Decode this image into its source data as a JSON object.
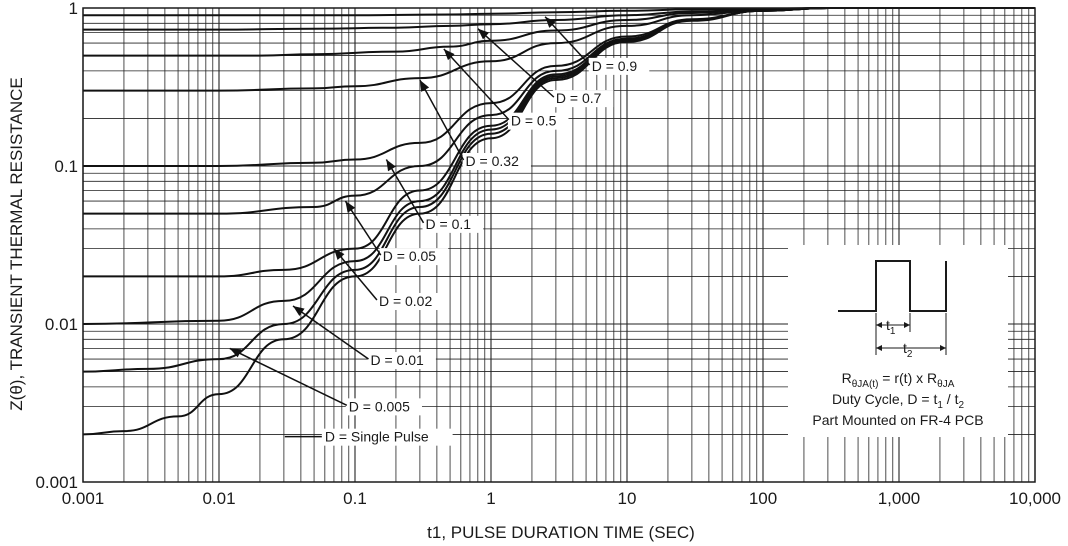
{
  "chart_data": {
    "type": "line",
    "xlabel": "t1, PULSE DURATION TIME (SEC)",
    "ylabel": "Z(θ), TRANSIENT  THERMAL RESISTANCE",
    "x_scale": "log",
    "y_scale": "log",
    "xlim": [
      0.001,
      10000
    ],
    "ylim": [
      0.001,
      1
    ],
    "grid": true,
    "x_tick_labels": [
      "0.001",
      "0.01",
      "0.1",
      "1",
      "10",
      "100",
      "1,000",
      "10,000"
    ],
    "y_tick_labels": [
      "0.001",
      "0.01",
      "0.1",
      "1"
    ],
    "series": [
      {
        "name": "D = 0.9",
        "D": 0.9,
        "points": [
          [
            0.001,
            0.9
          ],
          [
            0.01,
            0.9
          ],
          [
            0.1,
            0.9
          ],
          [
            0.5,
            0.91
          ],
          [
            1,
            0.92
          ],
          [
            3,
            0.94
          ],
          [
            10,
            0.96
          ],
          [
            30,
            0.98
          ],
          [
            100,
            0.99
          ],
          [
            300,
            1.0
          ],
          [
            10000,
            1.0
          ]
        ]
      },
      {
        "name": "D = 0.7",
        "D": 0.7,
        "points": [
          [
            0.001,
            0.73
          ],
          [
            0.01,
            0.73
          ],
          [
            0.05,
            0.74
          ],
          [
            0.2,
            0.75
          ],
          [
            0.5,
            0.77
          ],
          [
            1,
            0.79
          ],
          [
            3,
            0.84
          ],
          [
            10,
            0.9
          ],
          [
            30,
            0.95
          ],
          [
            100,
            0.98
          ],
          [
            300,
            1.0
          ],
          [
            10000,
            1.0
          ]
        ]
      },
      {
        "name": "D = 0.5",
        "D": 0.5,
        "points": [
          [
            0.001,
            0.5
          ],
          [
            0.02,
            0.5
          ],
          [
            0.05,
            0.51
          ],
          [
            0.2,
            0.53
          ],
          [
            0.5,
            0.57
          ],
          [
            1,
            0.62
          ],
          [
            3,
            0.72
          ],
          [
            10,
            0.84
          ],
          [
            30,
            0.93
          ],
          [
            100,
            0.98
          ],
          [
            300,
            1.0
          ],
          [
            10000,
            1.0
          ]
        ]
      },
      {
        "name": "D = 0.32",
        "D": 0.32,
        "points": [
          [
            0.001,
            0.3
          ],
          [
            0.01,
            0.3
          ],
          [
            0.05,
            0.31
          ],
          [
            0.1,
            0.32
          ],
          [
            0.3,
            0.36
          ],
          [
            1,
            0.46
          ],
          [
            3,
            0.6
          ],
          [
            10,
            0.77
          ],
          [
            30,
            0.9
          ],
          [
            100,
            0.97
          ],
          [
            300,
            1.0
          ],
          [
            10000,
            1.0
          ]
        ]
      },
      {
        "name": "D = 0.1",
        "D": 0.1,
        "points": [
          [
            0.001,
            0.1
          ],
          [
            0.01,
            0.1
          ],
          [
            0.05,
            0.105
          ],
          [
            0.1,
            0.11
          ],
          [
            0.3,
            0.14
          ],
          [
            1,
            0.25
          ],
          [
            3,
            0.43
          ],
          [
            10,
            0.66
          ],
          [
            30,
            0.85
          ],
          [
            100,
            0.96
          ],
          [
            300,
            1.0
          ],
          [
            10000,
            1.0
          ]
        ]
      },
      {
        "name": "D = 0.05",
        "D": 0.05,
        "points": [
          [
            0.001,
            0.05
          ],
          [
            0.01,
            0.05
          ],
          [
            0.05,
            0.055
          ],
          [
            0.1,
            0.065
          ],
          [
            0.3,
            0.1
          ],
          [
            1,
            0.21
          ],
          [
            3,
            0.4
          ],
          [
            10,
            0.64
          ],
          [
            30,
            0.84
          ],
          [
            100,
            0.96
          ],
          [
            300,
            1.0
          ],
          [
            10000,
            1.0
          ]
        ]
      },
      {
        "name": "D = 0.02",
        "D": 0.02,
        "points": [
          [
            0.001,
            0.02
          ],
          [
            0.01,
            0.02
          ],
          [
            0.03,
            0.022
          ],
          [
            0.1,
            0.03
          ],
          [
            0.3,
            0.07
          ],
          [
            1,
            0.18
          ],
          [
            3,
            0.38
          ],
          [
            10,
            0.63
          ],
          [
            30,
            0.84
          ],
          [
            100,
            0.96
          ],
          [
            300,
            1.0
          ],
          [
            10000,
            1.0
          ]
        ]
      },
      {
        "name": "D = 0.01",
        "D": 0.01,
        "points": [
          [
            0.001,
            0.01
          ],
          [
            0.01,
            0.0105
          ],
          [
            0.03,
            0.014
          ],
          [
            0.1,
            0.025
          ],
          [
            0.3,
            0.06
          ],
          [
            1,
            0.17
          ],
          [
            3,
            0.37
          ],
          [
            10,
            0.62
          ],
          [
            30,
            0.84
          ],
          [
            100,
            0.96
          ],
          [
            300,
            1.0
          ],
          [
            10000,
            1.0
          ]
        ]
      },
      {
        "name": "D = 0.005",
        "D": 0.005,
        "points": [
          [
            0.001,
            0.005
          ],
          [
            0.003,
            0.0052
          ],
          [
            0.01,
            0.006
          ],
          [
            0.03,
            0.01
          ],
          [
            0.1,
            0.022
          ],
          [
            0.3,
            0.055
          ],
          [
            1,
            0.16
          ],
          [
            3,
            0.36
          ],
          [
            10,
            0.62
          ],
          [
            30,
            0.84
          ],
          [
            100,
            0.96
          ],
          [
            300,
            1.0
          ],
          [
            10000,
            1.0
          ]
        ]
      },
      {
        "name": "D = Single Pulse",
        "D": 0,
        "points": [
          [
            0.001,
            0.002
          ],
          [
            0.002,
            0.0021
          ],
          [
            0.005,
            0.0026
          ],
          [
            0.01,
            0.0036
          ],
          [
            0.03,
            0.008
          ],
          [
            0.1,
            0.02
          ],
          [
            0.3,
            0.05
          ],
          [
            1,
            0.15
          ],
          [
            3,
            0.35
          ],
          [
            10,
            0.61
          ],
          [
            30,
            0.83
          ],
          [
            100,
            0.96
          ],
          [
            300,
            1.0
          ],
          [
            10000,
            1.0
          ]
        ]
      }
    ],
    "annotations": [
      {
        "text": "D = 0.9",
        "x": 5.5,
        "y": 0.4,
        "arrow_to": [
          2.5,
          0.88
        ]
      },
      {
        "text": "D = 0.7",
        "x": 3.0,
        "y": 0.25,
        "arrow_to": [
          0.8,
          0.74
        ]
      },
      {
        "text": "D = 0.5",
        "x": 1.4,
        "y": 0.18,
        "arrow_to": [
          0.45,
          0.55
        ]
      },
      {
        "text": "D = 0.32",
        "x": 0.65,
        "y": 0.1,
        "arrow_to": [
          0.3,
          0.35
        ]
      },
      {
        "text": "D = 0.1",
        "x": 0.33,
        "y": 0.04,
        "arrow_to": [
          0.17,
          0.11
        ]
      },
      {
        "text": "D = 0.05",
        "x": 0.16,
        "y": 0.025,
        "arrow_to": [
          0.085,
          0.06
        ]
      },
      {
        "text": "D = 0.02",
        "x": 0.15,
        "y": 0.013,
        "arrow_to": [
          0.07,
          0.03
        ]
      },
      {
        "text": "D = 0.01",
        "x": 0.13,
        "y": 0.0055,
        "arrow_to": [
          0.035,
          0.013
        ]
      },
      {
        "text": "D = 0.005",
        "x": 0.09,
        "y": 0.0028,
        "arrow_to": [
          0.012,
          0.007
        ]
      },
      {
        "text": "D = Single Pulse",
        "x": 0.06,
        "y": 0.0018
      }
    ],
    "inset": {
      "t1_label": "t",
      "t1_sub": "1",
      "t2_label": "t",
      "t2_sub": "2",
      "formula": {
        "r_main": "R",
        "r_sub": "θJA(t)",
        "middle": " = r(t) x R",
        "r_sub2": "θJA"
      },
      "duty": {
        "text": "Duty Cycle, D = t",
        "sub1": "1",
        "slash": " / t",
        "sub2": "2"
      },
      "mount": "Part Mounted on FR-4 PCB"
    }
  }
}
